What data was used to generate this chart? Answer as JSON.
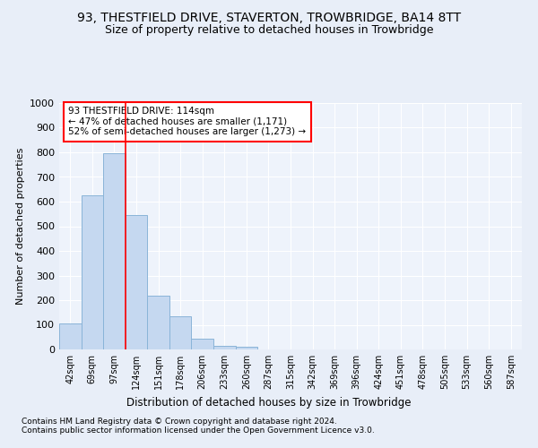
{
  "title1": "93, THESTFIELD DRIVE, STAVERTON, TROWBRIDGE, BA14 8TT",
  "title2": "Size of property relative to detached houses in Trowbridge",
  "xlabel": "Distribution of detached houses by size in Trowbridge",
  "ylabel": "Number of detached properties",
  "bar_values": [
    105,
    625,
    795,
    545,
    220,
    135,
    42,
    15,
    10,
    0,
    0,
    0,
    0,
    0,
    0,
    0,
    0,
    0,
    0,
    0,
    0
  ],
  "bar_labels": [
    "42sqm",
    "69sqm",
    "97sqm",
    "124sqm",
    "151sqm",
    "178sqm",
    "206sqm",
    "233sqm",
    "260sqm",
    "287sqm",
    "315sqm",
    "342sqm",
    "369sqm",
    "396sqm",
    "424sqm",
    "451sqm",
    "478sqm",
    "505sqm",
    "533sqm",
    "560sqm",
    "587sqm"
  ],
  "bar_color": "#c5d8f0",
  "bar_edge_color": "#8ab4d8",
  "vline_x": 2.5,
  "vline_color": "red",
  "annotation_box_text": "93 THESTFIELD DRIVE: 114sqm\n← 47% of detached houses are smaller (1,171)\n52% of semi-detached houses are larger (1,273) →",
  "box_edge_color": "red",
  "ylim": [
    0,
    1000
  ],
  "yticks": [
    0,
    100,
    200,
    300,
    400,
    500,
    600,
    700,
    800,
    900,
    1000
  ],
  "footnote1": "Contains HM Land Registry data © Crown copyright and database right 2024.",
  "footnote2": "Contains public sector information licensed under the Open Government Licence v3.0.",
  "bg_color": "#e8eef8",
  "plot_bg_color": "#eef3fb",
  "grid_color": "#ffffff",
  "title1_fontsize": 10,
  "title2_fontsize": 9
}
